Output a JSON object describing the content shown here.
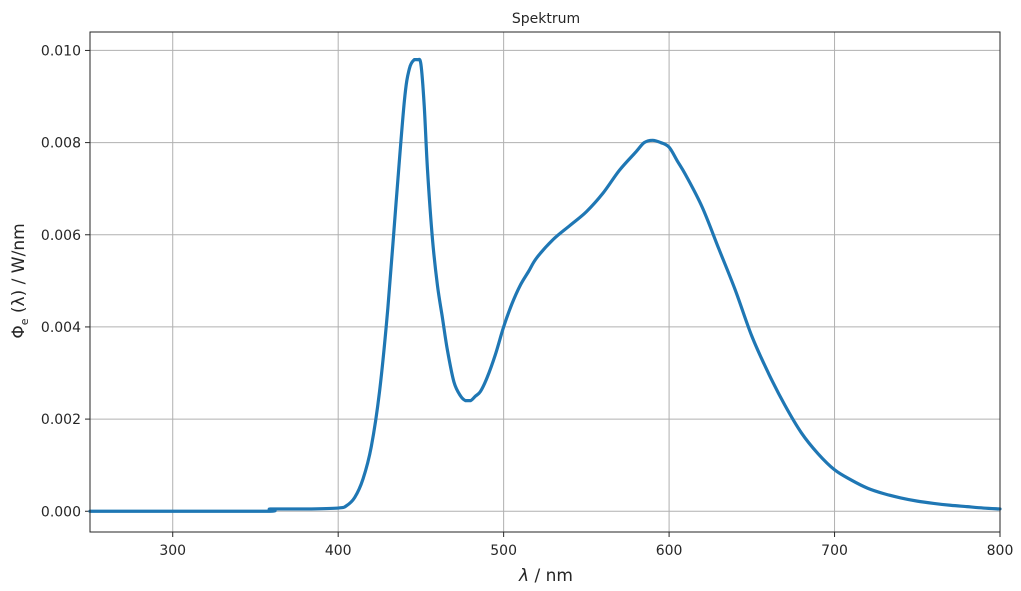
{
  "chart_data": {
    "type": "line",
    "title": "Spektrum",
    "xlabel_symbol": "λ",
    "xlabel_unit": " / nm",
    "ylabel_symbol": "Φ",
    "ylabel_subscript": "e",
    "ylabel_arg": " (λ)",
    "ylabel_unit": " / W/nm",
    "xlim": [
      250,
      800
    ],
    "ylim": [
      -0.00045,
      0.0104
    ],
    "xticks": [
      300,
      400,
      500,
      600,
      700,
      800
    ],
    "xtick_labels": [
      "300",
      "400",
      "500",
      "600",
      "700",
      "800"
    ],
    "yticks": [
      0.0,
      0.002,
      0.004,
      0.006,
      0.008,
      0.01
    ],
    "ytick_labels": [
      "0.000",
      "0.002",
      "0.004",
      "0.006",
      "0.008",
      "0.010"
    ],
    "grid": true,
    "line_color": "#1f77b4",
    "series": [
      {
        "x": [
          250,
          300,
          358,
          359,
          380,
          400,
          405,
          410,
          415,
          420,
          425,
          430,
          435,
          440,
          443,
          446,
          448,
          450,
          452,
          454,
          457,
          460,
          463,
          466,
          470,
          474,
          477,
          480,
          483,
          486,
          490,
          495,
          500,
          505,
          510,
          515,
          520,
          530,
          540,
          550,
          560,
          570,
          580,
          585,
          590,
          595,
          600,
          605,
          610,
          620,
          630,
          640,
          650,
          660,
          670,
          680,
          690,
          700,
          710,
          720,
          730,
          740,
          750,
          760,
          770,
          780,
          790,
          800
        ],
        "y": [
          0.0,
          0.0,
          0.0,
          5e-05,
          5e-05,
          7e-05,
          0.00012,
          0.0003,
          0.0007,
          0.0014,
          0.0026,
          0.0044,
          0.0067,
          0.0089,
          0.0096,
          0.0098,
          0.0098,
          0.0097,
          0.0088,
          0.0074,
          0.0059,
          0.0049,
          0.0042,
          0.0035,
          0.0028,
          0.0025,
          0.0024,
          0.0024,
          0.0025,
          0.0026,
          0.0029,
          0.0034,
          0.004,
          0.0045,
          0.0049,
          0.0052,
          0.0055,
          0.0059,
          0.0062,
          0.0065,
          0.0069,
          0.0074,
          0.0078,
          0.008,
          0.00805,
          0.008,
          0.0079,
          0.0076,
          0.0073,
          0.0066,
          0.0057,
          0.0048,
          0.0038,
          0.003,
          0.0023,
          0.0017,
          0.00125,
          0.0009,
          0.00068,
          0.0005,
          0.00038,
          0.00029,
          0.00022,
          0.00017,
          0.00013,
          0.0001,
          7e-05,
          5e-05
        ]
      }
    ]
  }
}
